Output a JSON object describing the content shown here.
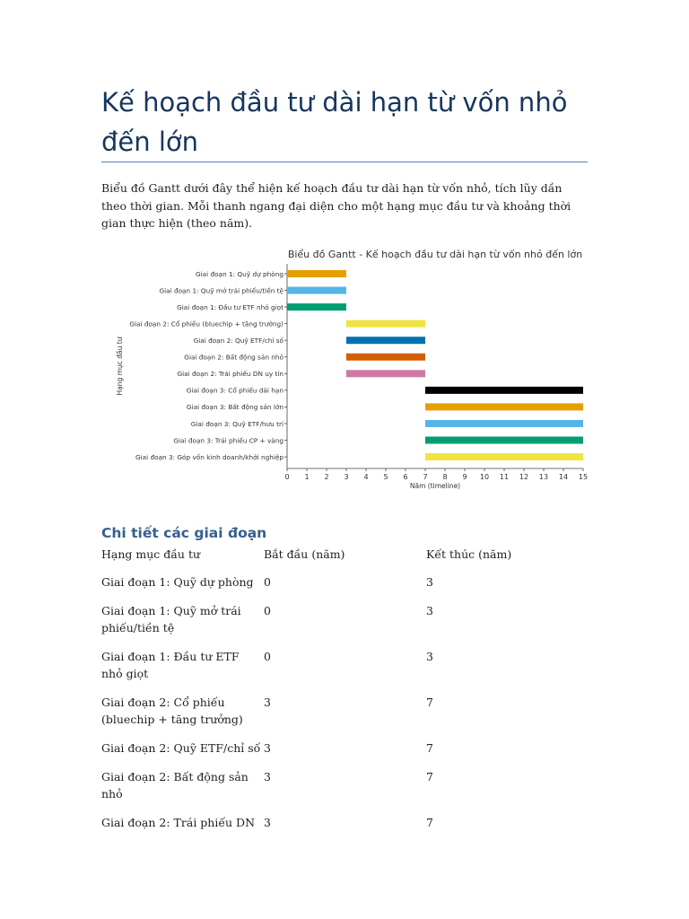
{
  "document": {
    "title": "Kế hoạch đầu tư dài hạn từ vốn nhỏ đến lớn",
    "intro": "Biểu đồ Gantt dưới đây thể hiện kế hoạch đầu tư dài hạn từ vốn nhỏ, tích lũy dần theo thời gian. Mỗi thanh ngang đại diện cho một hạng mục đầu tư và khoảng thời gian thực hiện (theo năm).",
    "section_heading": "Chi tiết các giai đoạn",
    "table": {
      "headers": [
        "Hạng mục đầu tư",
        "Bắt đầu (năm)",
        "Kết thúc (năm)"
      ],
      "rows": [
        [
          "Giai đoạn 1: Quỹ dự phòng",
          "0",
          "3"
        ],
        [
          "Giai đoạn 1: Quỹ mở trái phiếu/tiền tệ",
          "0",
          "3"
        ],
        [
          "Giai đoạn 1: Đầu tư ETF nhỏ giọt",
          "0",
          "3"
        ],
        [
          "Giai đoạn 2: Cổ phiếu (bluechip + tăng trưởng)",
          "3",
          "7"
        ],
        [
          "Giai đoạn 2: Quỹ ETF/chỉ số",
          "3",
          "7"
        ],
        [
          "Giai đoạn 2: Bất động sản nhỏ",
          "3",
          "7"
        ],
        [
          "Giai đoạn 2: Trái phiếu DN",
          "3",
          "7"
        ]
      ]
    }
  },
  "chart_data": {
    "type": "gantt",
    "title": "Biểu đồ Gantt - Kế hoạch đầu tư dài hạn từ vốn nhỏ đến lớn",
    "xlabel": "Năm (timeline)",
    "ylabel": "Hạng mục đầu tư",
    "xlim": [
      0,
      15
    ],
    "xticks": [
      0,
      1,
      2,
      3,
      4,
      5,
      6,
      7,
      8,
      9,
      10,
      11,
      12,
      13,
      14,
      15
    ],
    "grid": false,
    "tasks": [
      {
        "name": "Giai đoạn 1: Quỹ dự phòng",
        "start": 0,
        "end": 3,
        "color": "#e69f00"
      },
      {
        "name": "Giai đoạn 1: Quỹ mở trái phiếu/tiền tệ",
        "start": 0,
        "end": 3,
        "color": "#56b4e9"
      },
      {
        "name": "Giai đoạn 1: Đầu tư ETF nhỏ giọt",
        "start": 0,
        "end": 3,
        "color": "#009e73"
      },
      {
        "name": "Giai đoạn 2: Cổ phiếu (bluechip + tăng trưởng)",
        "start": 3,
        "end": 7,
        "color": "#f0e442"
      },
      {
        "name": "Giai đoạn 2: Quỹ ETF/chỉ số",
        "start": 3,
        "end": 7,
        "color": "#0072b2"
      },
      {
        "name": "Giai đoạn 2: Bất động sản nhỏ",
        "start": 3,
        "end": 7,
        "color": "#d55e00"
      },
      {
        "name": "Giai đoạn 2: Trái phiếu DN uy tín",
        "start": 3,
        "end": 7,
        "color": "#cc79a7"
      },
      {
        "name": "Giai đoạn 3: Cổ phiếu dài hạn",
        "start": 7,
        "end": 15,
        "color": "#000000"
      },
      {
        "name": "Giai đoạn 3: Bất động sản lớn",
        "start": 7,
        "end": 15,
        "color": "#e69f00"
      },
      {
        "name": "Giai đoạn 3: Quỹ ETF/hưu trí",
        "start": 7,
        "end": 15,
        "color": "#56b4e9"
      },
      {
        "name": "Giai đoạn 3: Trái phiếu CP + vàng",
        "start": 7,
        "end": 15,
        "color": "#009e73"
      },
      {
        "name": "Giai đoạn 3: Góp vốn kinh doanh/khởi nghiệp",
        "start": 7,
        "end": 15,
        "color": "#f0e442"
      }
    ]
  }
}
